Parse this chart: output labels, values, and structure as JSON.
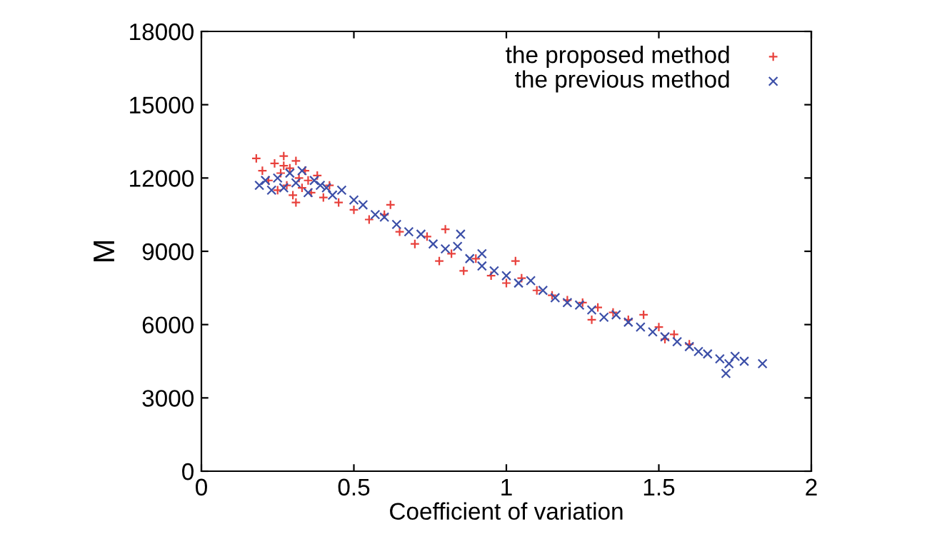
{
  "chart_data": {
    "type": "scatter",
    "xlabel": "Coefficient of variation",
    "ylabel": "M",
    "xlim": [
      0,
      2
    ],
    "ylim": [
      0,
      18000
    ],
    "xticks": [
      0,
      0.5,
      1,
      1.5,
      2
    ],
    "yticks": [
      0,
      3000,
      6000,
      9000,
      12000,
      15000,
      18000
    ],
    "grid": false,
    "legend": "top right",
    "series": [
      {
        "name": "the proposed method",
        "color": "#e8413c",
        "marker": "cross",
        "x": [
          0.18,
          0.2,
          0.22,
          0.24,
          0.25,
          0.26,
          0.27,
          0.28,
          0.29,
          0.3,
          0.31,
          0.32,
          0.33,
          0.34,
          0.35,
          0.36,
          0.38,
          0.4,
          0.42,
          0.45,
          0.5,
          0.55,
          0.6,
          0.65,
          0.7,
          0.74,
          0.78,
          0.82,
          0.86,
          0.9,
          0.95,
          1.0,
          1.05,
          1.1,
          1.15,
          1.2,
          1.25,
          1.3,
          1.35,
          1.4,
          1.45,
          1.5,
          1.55,
          1.6,
          1.03,
          0.8,
          1.28,
          0.62,
          1.52,
          0.27,
          0.31
        ],
        "values": [
          12800,
          12300,
          11900,
          12600,
          11500,
          12200,
          12900,
          11700,
          12400,
          11300,
          12700,
          12000,
          11600,
          12300,
          11900,
          11400,
          12100,
          11200,
          11700,
          11000,
          10700,
          10300,
          10500,
          9800,
          9300,
          9600,
          8600,
          8900,
          8200,
          8700,
          8000,
          7700,
          7900,
          7400,
          7200,
          7000,
          6900,
          6700,
          6500,
          6200,
          6400,
          5900,
          5600,
          5200,
          8600,
          9900,
          6200,
          10900,
          5400,
          12500,
          11000
        ]
      },
      {
        "name": "the previous method",
        "color": "#3c4fa8",
        "marker": "cross",
        "x": [
          0.19,
          0.21,
          0.23,
          0.25,
          0.27,
          0.29,
          0.31,
          0.33,
          0.35,
          0.37,
          0.39,
          0.41,
          0.43,
          0.46,
          0.5,
          0.53,
          0.57,
          0.6,
          0.64,
          0.68,
          0.72,
          0.76,
          0.8,
          0.84,
          0.88,
          0.92,
          0.96,
          1.0,
          1.04,
          1.08,
          1.12,
          1.16,
          1.2,
          1.24,
          1.28,
          1.32,
          1.36,
          1.4,
          1.44,
          1.48,
          1.52,
          1.56,
          1.6,
          1.63,
          1.66,
          1.7,
          1.73,
          1.75,
          1.78,
          1.84,
          1.72,
          0.85,
          0.92
        ],
        "values": [
          11700,
          11900,
          11500,
          12000,
          11600,
          12200,
          11800,
          12300,
          11400,
          11900,
          11700,
          11600,
          11300,
          11500,
          11100,
          10900,
          10500,
          10400,
          10100,
          9800,
          9700,
          9300,
          9100,
          9200,
          8700,
          8400,
          8200,
          8000,
          7700,
          7800,
          7400,
          7100,
          6900,
          6800,
          6600,
          6300,
          6400,
          6100,
          5900,
          5700,
          5500,
          5300,
          5100,
          4900,
          4800,
          4600,
          4400,
          4700,
          4500,
          4400,
          4000,
          9700,
          8900
        ]
      }
    ]
  }
}
